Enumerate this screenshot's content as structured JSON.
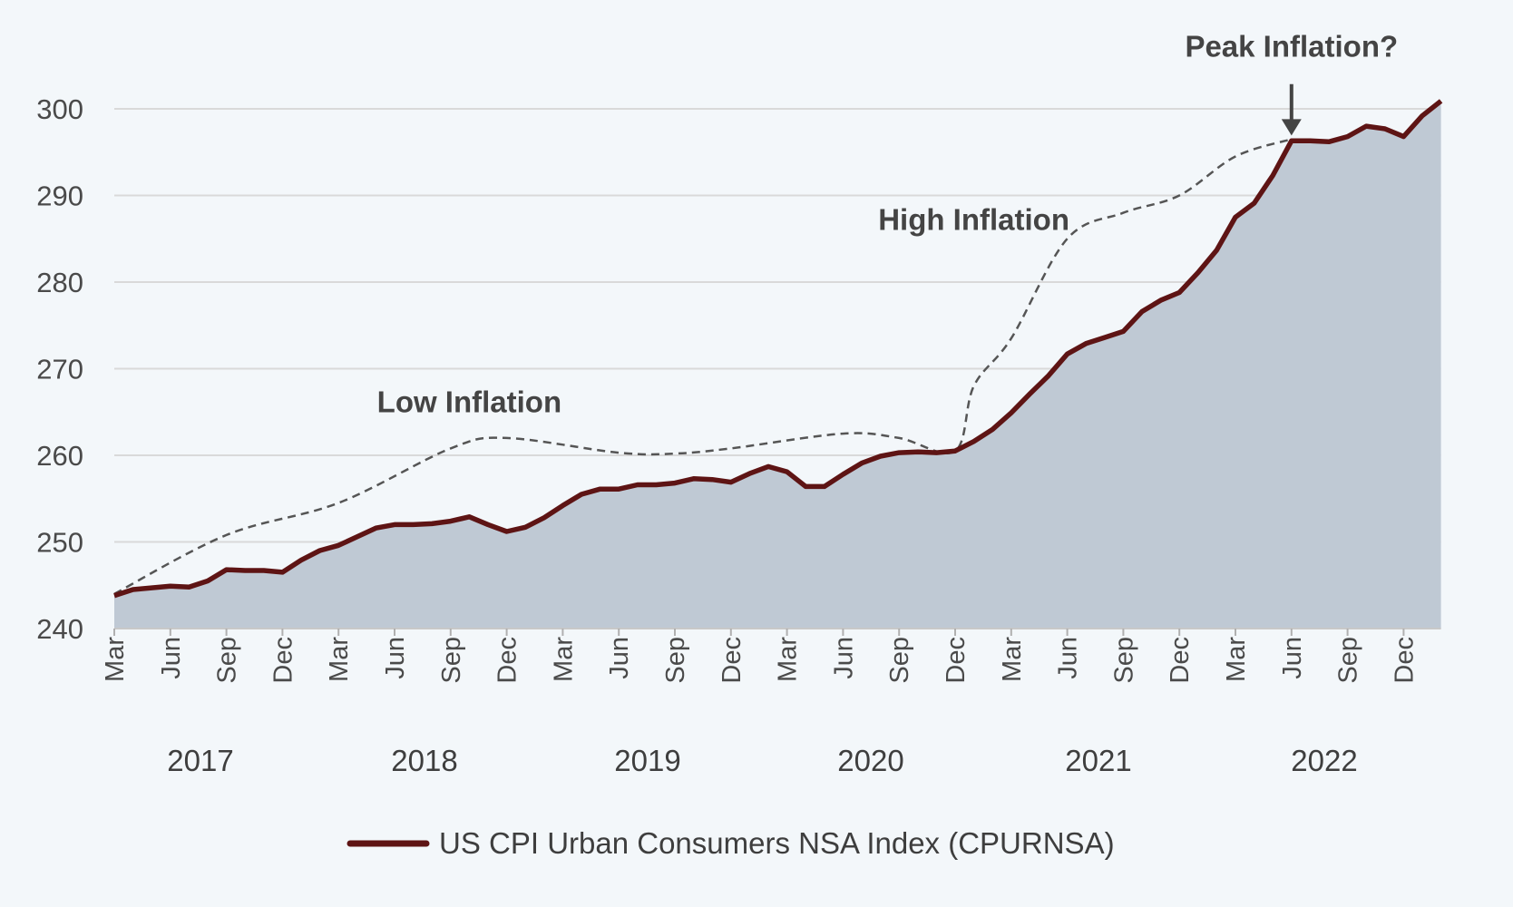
{
  "chart_data": {
    "type": "area",
    "title": "",
    "xlabel": "",
    "ylabel": "",
    "ylim": [
      240,
      300
    ],
    "y_ticks": [
      240,
      250,
      260,
      270,
      280,
      290,
      300
    ],
    "grid": true,
    "legend_position": "bottom-center",
    "colors": {
      "line": "#5e1414",
      "area": "#bfc9d4",
      "trend": "#555555",
      "grid": "#d9d9d9"
    },
    "x_tick_labels": [
      "Mar",
      "Jun",
      "Sep",
      "Dec",
      "Mar",
      "Jun",
      "Sep",
      "Dec",
      "Mar",
      "Jun",
      "Sep",
      "Dec",
      "Mar",
      "Jun",
      "Sep",
      "Dec",
      "Mar",
      "Jun",
      "Sep",
      "Dec",
      "Mar",
      "Jun",
      "Sep",
      "Dec"
    ],
    "year_labels": [
      "2017",
      "2018",
      "2019",
      "2020",
      "2021",
      "2022"
    ],
    "x_start": "2017-03",
    "series": [
      {
        "name": "US CPI Urban Consumers NSA Index (CPURNSA)",
        "x": [
          "2017-03",
          "2017-04",
          "2017-05",
          "2017-06",
          "2017-07",
          "2017-08",
          "2017-09",
          "2017-10",
          "2017-11",
          "2017-12",
          "2018-01",
          "2018-02",
          "2018-03",
          "2018-04",
          "2018-05",
          "2018-06",
          "2018-07",
          "2018-08",
          "2018-09",
          "2018-10",
          "2018-11",
          "2018-12",
          "2019-01",
          "2019-02",
          "2019-03",
          "2019-04",
          "2019-05",
          "2019-06",
          "2019-07",
          "2019-08",
          "2019-09",
          "2019-10",
          "2019-11",
          "2019-12",
          "2020-01",
          "2020-02",
          "2020-03",
          "2020-04",
          "2020-05",
          "2020-06",
          "2020-07",
          "2020-08",
          "2020-09",
          "2020-10",
          "2020-11",
          "2020-12",
          "2021-01",
          "2021-02",
          "2021-03",
          "2021-04",
          "2021-05",
          "2021-06",
          "2021-07",
          "2021-08",
          "2021-09",
          "2021-10",
          "2021-11",
          "2021-12",
          "2022-01",
          "2022-02",
          "2022-03",
          "2022-04",
          "2022-05",
          "2022-06",
          "2022-07",
          "2022-08",
          "2022-09",
          "2022-10",
          "2022-11",
          "2022-12",
          "2023-01",
          "2023-02"
        ],
        "values": [
          243.8,
          244.5,
          244.7,
          244.9,
          244.8,
          245.5,
          246.8,
          246.7,
          246.7,
          246.5,
          247.9,
          249.0,
          249.6,
          250.6,
          251.6,
          252.0,
          252.0,
          252.1,
          252.4,
          252.9,
          252.0,
          251.2,
          251.7,
          252.8,
          254.2,
          255.5,
          256.1,
          256.1,
          256.6,
          256.6,
          256.8,
          257.3,
          257.2,
          256.9,
          257.9,
          258.7,
          258.1,
          256.4,
          256.4,
          257.8,
          259.1,
          259.9,
          260.3,
          260.4,
          260.3,
          260.5,
          261.6,
          263.0,
          264.9,
          267.1,
          269.2,
          271.7,
          272.9,
          273.6,
          274.3,
          276.6,
          277.9,
          278.8,
          281.1,
          283.7,
          287.5,
          289.1,
          292.3,
          296.3,
          296.3,
          296.2,
          296.8,
          298.0,
          297.7,
          296.8,
          299.2,
          300.9
        ]
      }
    ],
    "trend_line": {
      "style": "dashed",
      "x": [
        "2017-03",
        "2017-09",
        "2018-03",
        "2018-09",
        "2018-12",
        "2019-06",
        "2019-09",
        "2019-12",
        "2020-06",
        "2020-09",
        "2020-12",
        "2021-01",
        "2021-03",
        "2021-06",
        "2021-09",
        "2021-12",
        "2022-03",
        "2022-06"
      ],
      "values": [
        244.0,
        250.8,
        254.5,
        260.8,
        262.0,
        260.3,
        260.2,
        260.8,
        262.5,
        262.0,
        260.5,
        268.0,
        273.5,
        285.0,
        288.0,
        290.0,
        294.5,
        296.5
      ]
    },
    "annotations": [
      {
        "text": "Low Inflation",
        "x": "2018-10",
        "y": 265
      },
      {
        "text": "High Inflation",
        "x": "2021-01",
        "y": 286
      },
      {
        "text": "Peak Inflation?",
        "x": "2022-06",
        "y": 306,
        "arrow_to": 296.5
      }
    ]
  }
}
